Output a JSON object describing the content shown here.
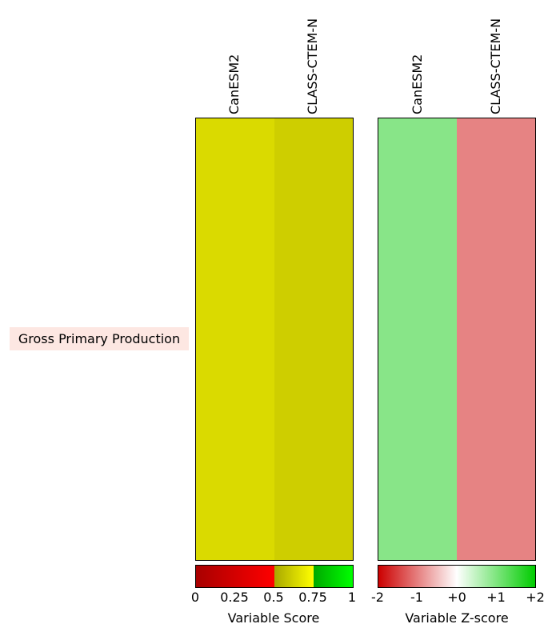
{
  "chart_data": [
    {
      "type": "heatmap",
      "rows": [
        "Gross Primary Production"
      ],
      "columns": [
        "CanESM2",
        "CLASS-CTEM-N"
      ],
      "cell_colors": [
        [
          "#dada00",
          "#cece00"
        ]
      ],
      "colorbar": {
        "label": "Variable Score",
        "ticks": [
          "0",
          "0.25",
          "0.5",
          "0.75",
          "1"
        ],
        "range": [
          0,
          1
        ]
      }
    },
    {
      "type": "heatmap",
      "rows": [
        "Gross Primary Production"
      ],
      "columns": [
        "CanESM2",
        "CLASS-CTEM-N"
      ],
      "cell_colors": [
        [
          "#88e588",
          "#e68383"
        ]
      ],
      "colorbar": {
        "label": "Variable Z-score",
        "ticks": [
          "-2",
          "-1",
          "+0",
          "+1",
          "+2"
        ],
        "range": [
          -2,
          2
        ]
      }
    }
  ]
}
